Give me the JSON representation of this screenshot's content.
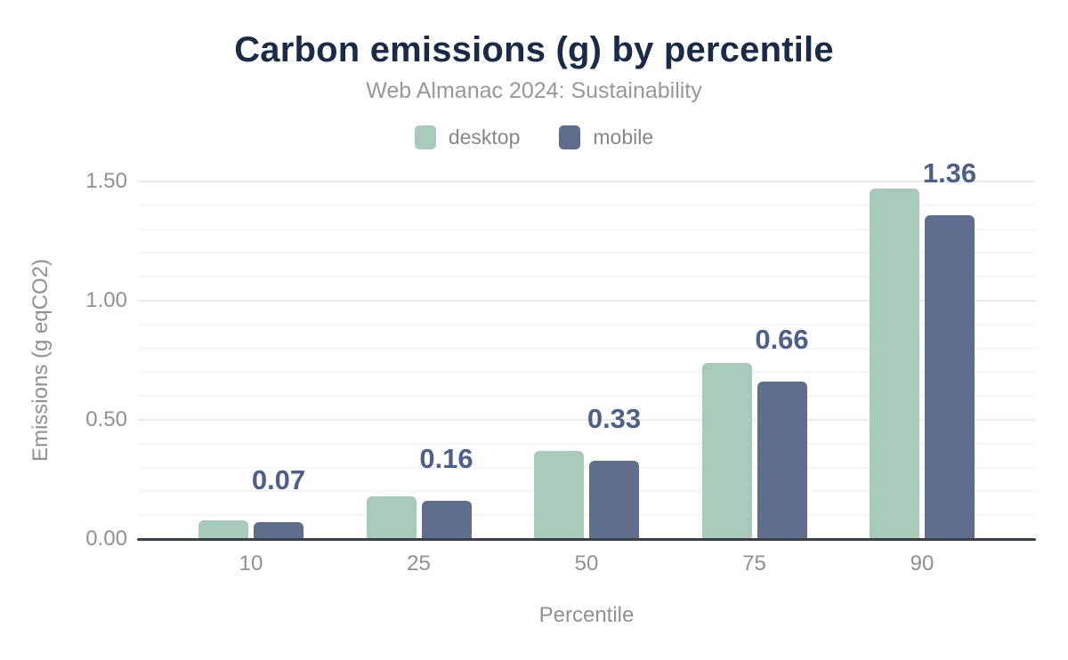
{
  "header": {
    "title": "Carbon emissions (g) by percentile",
    "subtitle": "Web Almanac 2024: Sustainability"
  },
  "legend": [
    {
      "label": "desktop",
      "color": "#a8caba"
    },
    {
      "label": "mobile",
      "color": "#5f6e8c"
    }
  ],
  "chart_data": {
    "type": "bar",
    "title": "Carbon emissions (g) by percentile",
    "subtitle": "Web Almanac 2024: Sustainability",
    "categories": [
      "10",
      "25",
      "50",
      "75",
      "90"
    ],
    "series": [
      {
        "name": "desktop",
        "color": "#a8caba",
        "values": [
          0.08,
          0.18,
          0.37,
          0.74,
          1.47
        ]
      },
      {
        "name": "mobile",
        "color": "#5f6e8c",
        "values": [
          0.07,
          0.16,
          0.33,
          0.66,
          1.36
        ]
      }
    ],
    "bar_labels": {
      "series": "mobile",
      "values": [
        "0.07",
        "0.16",
        "0.33",
        "0.66",
        "1.36"
      ]
    },
    "xlabel": "Percentile",
    "ylabel": "Emissions (g eqCO2)",
    "ylim": [
      0,
      1.5
    ],
    "y_ticks": [
      {
        "label": "0.00",
        "value": 0.0
      },
      {
        "label": "0.50",
        "value": 0.5
      },
      {
        "label": "1.00",
        "value": 1.0
      },
      {
        "label": "1.50",
        "value": 1.5
      }
    ],
    "minor_grid_step": 0.1,
    "grid": true,
    "legend_position": "top"
  },
  "colors": {
    "title_text": "#1a2b49",
    "subtitle_text": "#97989a",
    "axis_text": "#8e9094",
    "value_label_text": "#4d6089",
    "axis_line": "#3b4048",
    "grid_minor": "#f5f5f6",
    "grid_major": "#e9eaec"
  }
}
